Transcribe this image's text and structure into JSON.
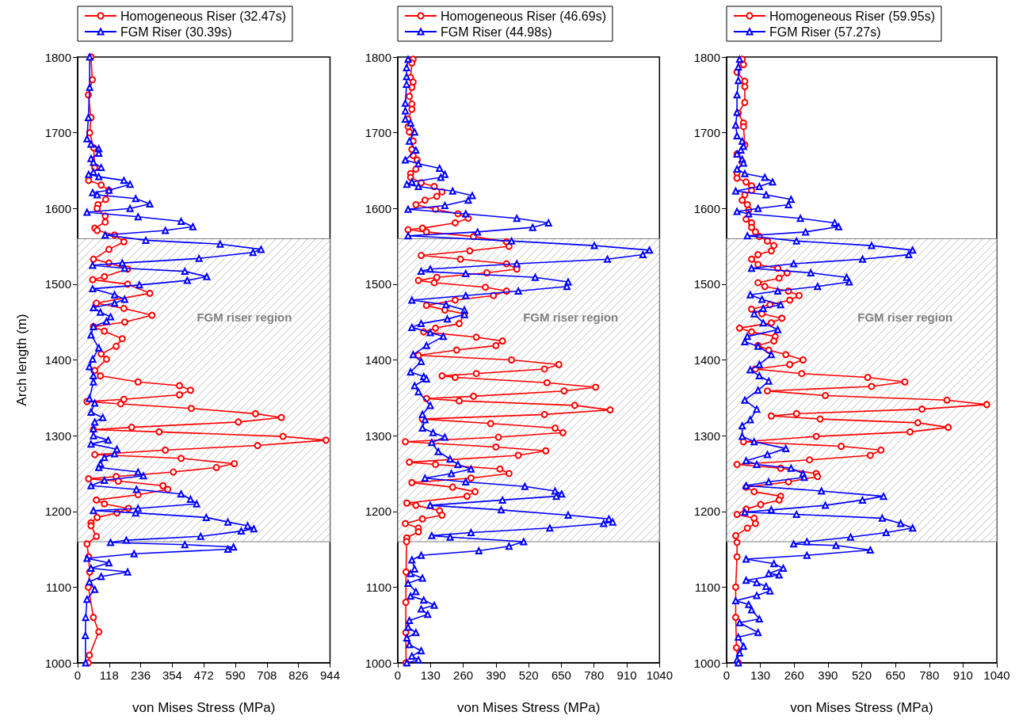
{
  "chart_data": [
    {
      "type": "line",
      "xlabel": "von Mises Stress (MPa)",
      "ylabel": "Arch length (m)",
      "legend": "top",
      "xlim": [
        0,
        944
      ],
      "xticks": [
        0,
        118,
        236,
        354,
        472,
        590,
        708,
        826,
        944
      ],
      "ylim": [
        1000,
        1800
      ],
      "yticks": [
        1000,
        1100,
        1200,
        1300,
        1400,
        1500,
        1600,
        1700,
        1800
      ],
      "bands": [
        {
          "axis": "y",
          "from": 1160,
          "to": 1560,
          "label": "FGM riser region",
          "color": "#808080"
        }
      ],
      "series": [
        {
          "name": "Homogeneous Riser (32.47s)",
          "color": "#ff0000",
          "marker": "circle",
          "x": [
            50,
            55,
            40,
            50,
            45,
            60,
            64,
            41,
            88,
            117,
            105,
            76,
            73,
            103,
            103,
            64,
            73,
            138,
            173,
            117,
            59,
            117,
            187,
            100,
            56,
            187,
            270,
            70,
            173,
            278,
            176,
            59,
            100,
            167,
            144,
            88,
            108,
            64,
            85,
            226,
            381,
            422,
            381,
            173,
            35,
            161,
            425,
            665,
            762,
            601,
            202,
            59,
            305,
            768,
            929,
            673,
            328,
            64,
            387,
            586,
            519,
            358,
            144,
            41,
            152,
            319,
            337,
            226,
            70,
            100,
            190,
            147,
            73,
            50,
            50,
            70,
            35,
            41,
            45,
            40,
            59,
            79,
            44,
            40
          ],
          "values": [
            1800,
            1770,
            1750,
            1720,
            1700,
            1680,
            1654,
            1637,
            1631,
            1624,
            1612,
            1605,
            1600,
            1590,
            1582,
            1574,
            1571,
            1565,
            1556,
            1546,
            1533,
            1528,
            1520,
            1510,
            1506,
            1500,
            1488,
            1475,
            1468,
            1459,
            1450,
            1444,
            1438,
            1428,
            1418,
            1408,
            1401,
            1386,
            1379,
            1371,
            1366,
            1360,
            1354,
            1348,
            1345,
            1342,
            1336,
            1329,
            1324,
            1318,
            1311,
            1308,
            1305,
            1299,
            1294,
            1287,
            1281,
            1275,
            1270,
            1263,
            1258,
            1252,
            1246,
            1243,
            1240,
            1234,
            1229,
            1222,
            1215,
            1210,
            1204,
            1198,
            1192,
            1185,
            1181,
            1167,
            1157,
            1140,
            1120,
            1100,
            1060,
            1041,
            1010,
            1000
          ]
        },
        {
          "name": "FGM Riser (30.39s)",
          "color": "#0000ff",
          "marker": "triangle",
          "x": [
            45,
            45,
            40,
            35,
            50,
            79,
            79,
            50,
            59,
            88,
            59,
            41,
            79,
            173,
            196,
            117,
            56,
            73,
            217,
            270,
            196,
            35,
            226,
            387,
            431,
            328,
            103,
            255,
            533,
            686,
            656,
            454,
            167,
            56,
            176,
            401,
            483,
            410,
            231,
            56,
            138,
            176,
            138,
            59,
            85,
            123,
            108,
            59,
            50,
            79,
            56,
            44,
            59,
            59,
            44,
            64,
            50,
            94,
            64,
            59,
            59,
            114,
            50,
            147,
            138,
            100,
            85,
            79,
            226,
            246,
            100,
            50,
            220,
            387,
            422,
            445,
            226,
            59,
            217,
            481,
            562,
            636,
            659,
            612,
            460,
            182,
            123,
            401,
            583,
            562,
            211,
            35,
            117,
            50,
            187,
            88,
            44,
            64,
            35,
            30,
            29,
            30
          ],
          "values": [
            1800,
            1760,
            1720,
            1692,
            1685,
            1679,
            1673,
            1666,
            1661,
            1654,
            1648,
            1645,
            1642,
            1637,
            1632,
            1624,
            1621,
            1618,
            1613,
            1606,
            1600,
            1595,
            1589,
            1583,
            1576,
            1571,
            1565,
            1558,
            1553,
            1546,
            1542,
            1534,
            1528,
            1525,
            1521,
            1517,
            1510,
            1505,
            1499,
            1494,
            1486,
            1480,
            1475,
            1469,
            1463,
            1457,
            1451,
            1444,
            1433,
            1416,
            1401,
            1391,
            1379,
            1371,
            1349,
            1343,
            1331,
            1324,
            1318,
            1309,
            1300,
            1294,
            1289,
            1282,
            1276,
            1271,
            1263,
            1258,
            1252,
            1247,
            1241,
            1234,
            1229,
            1223,
            1216,
            1210,
            1204,
            1201,
            1198,
            1192,
            1186,
            1181,
            1177,
            1174,
            1167,
            1162,
            1159,
            1156,
            1153,
            1150,
            1144,
            1138,
            1132,
            1125,
            1120,
            1114,
            1107,
            1097,
            1084,
            1060,
            1036,
            1000
          ]
        }
      ]
    },
    {
      "type": "line",
      "xlabel": "von Mises Stress (MPa)",
      "legend": "top",
      "xlim": [
        0,
        1040
      ],
      "xticks": [
        0,
        130,
        260,
        390,
        520,
        650,
        780,
        910,
        1040
      ],
      "ylim": [
        1000,
        1800
      ],
      "yticks": [
        1000,
        1100,
        1200,
        1300,
        1400,
        1500,
        1600,
        1700,
        1800
      ],
      "bands": [
        {
          "axis": "y",
          "from": 1160,
          "to": 1560,
          "label": "FGM riser region",
          "color": "#808080"
        }
      ],
      "series": [
        {
          "name": "Homogeneous Riser (46.69s)",
          "color": "#ff0000",
          "marker": "circle",
          "x": [
            61,
            56,
            51,
            61,
            56,
            46,
            56,
            56,
            41,
            41,
            46,
            61,
            56,
            61,
            77,
            72,
            51,
            51,
            93,
            145,
            176,
            155,
            108,
            72,
            150,
            239,
            280,
            228,
            98,
            41,
            114,
            301,
            432,
            442,
            286,
            93,
            249,
            432,
            473,
            354,
            155,
            82,
            145,
            348,
            432,
            380,
            228,
            114,
            187,
            265,
            244,
            150,
            103,
            312,
            416,
            390,
            234,
            82,
            452,
            640,
            583,
            312,
            176,
            228,
            593,
            786,
            661,
            301,
            114,
            244,
            703,
            844,
            583,
            98,
            369,
            625,
            656,
            400,
            30,
            390,
            588,
            479,
            46,
            150,
            406,
            442,
            291,
            56,
            218,
            307,
            275,
            36,
            72,
            166,
            176,
            98,
            30,
            82,
            82,
            36,
            35,
            33,
            32,
            32,
            33
          ],
          "values": [
            1797,
            1792,
            1773,
            1767,
            1760,
            1748,
            1738,
            1731,
            1718,
            1708,
            1701,
            1689,
            1678,
            1670,
            1664,
            1652,
            1646,
            1641,
            1634,
            1629,
            1622,
            1616,
            1611,
            1605,
            1599,
            1593,
            1587,
            1581,
            1574,
            1572,
            1569,
            1563,
            1556,
            1550,
            1544,
            1538,
            1533,
            1527,
            1520,
            1515,
            1509,
            1505,
            1502,
            1496,
            1491,
            1485,
            1479,
            1472,
            1466,
            1461,
            1448,
            1442,
            1437,
            1430,
            1425,
            1419,
            1413,
            1406,
            1400,
            1394,
            1388,
            1382,
            1379,
            1377,
            1370,
            1364,
            1359,
            1352,
            1349,
            1346,
            1340,
            1334,
            1328,
            1322,
            1316,
            1310,
            1304,
            1298,
            1292,
            1285,
            1280,
            1274,
            1265,
            1262,
            1256,
            1250,
            1244,
            1238,
            1232,
            1226,
            1220,
            1211,
            1208,
            1201,
            1195,
            1190,
            1184,
            1178,
            1173,
            1165,
            1160,
            1120,
            1080,
            1040,
            1000
          ]
        },
        {
          "name": "FGM Riser (44.98s)",
          "color": "#0000ff",
          "marker": "triangle",
          "x": [
            41,
            35,
            35,
            35,
            30,
            30,
            30,
            51,
            67,
            46,
            72,
            30,
            82,
            166,
            187,
            171,
            56,
            36,
            82,
            218,
            296,
            280,
            187,
            41,
            270,
            473,
            599,
            536,
            317,
            41,
            452,
            781,
            1000,
            974,
            833,
            473,
            129,
            93,
            270,
            546,
            677,
            672,
            479,
            270,
            56,
            192,
            265,
            265,
            197,
            93,
            56,
            129,
            181,
            114,
            61,
            93,
            51,
            103,
            114,
            67,
            82,
            129,
            98,
            108,
            98,
            140,
            187,
            135,
            161,
            208,
            239,
            291,
            213,
            108,
            270,
            505,
            625,
            651,
            630,
            416,
            129,
            411,
            677,
            839,
            854,
            818,
            604,
            291,
            135,
            208,
            500,
            442,
            322,
            93,
            56,
            67,
            51,
            98,
            41,
            72,
            51,
            103,
            145,
            93,
            119,
            46,
            41,
            72,
            36,
            46,
            93,
            56,
            82,
            36
          ],
          "values": [
            1797,
            1786,
            1774,
            1764,
            1739,
            1729,
            1718,
            1713,
            1701,
            1689,
            1677,
            1664,
            1659,
            1653,
            1645,
            1641,
            1635,
            1632,
            1629,
            1623,
            1617,
            1611,
            1604,
            1599,
            1593,
            1587,
            1581,
            1575,
            1569,
            1564,
            1557,
            1551,
            1545,
            1539,
            1533,
            1527,
            1520,
            1517,
            1514,
            1509,
            1503,
            1497,
            1491,
            1485,
            1479,
            1473,
            1466,
            1460,
            1454,
            1448,
            1443,
            1436,
            1431,
            1419,
            1407,
            1398,
            1384,
            1378,
            1375,
            1366,
            1358,
            1340,
            1328,
            1321,
            1310,
            1304,
            1298,
            1291,
            1279,
            1269,
            1262,
            1256,
            1250,
            1244,
            1239,
            1233,
            1227,
            1223,
            1220,
            1215,
            1208,
            1202,
            1195,
            1190,
            1186,
            1184,
            1178,
            1172,
            1168,
            1166,
            1160,
            1154,
            1148,
            1142,
            1136,
            1124,
            1118,
            1112,
            1105,
            1094,
            1088,
            1083,
            1076,
            1071,
            1064,
            1056,
            1047,
            1040,
            1033,
            1024,
            1016,
            1009,
            1004,
            1000
          ]
        }
      ]
    },
    {
      "type": "line",
      "xlabel": "von Mises Stress (MPa)",
      "legend": "top",
      "xlim": [
        0,
        1040
      ],
      "xticks": [
        0,
        130,
        260,
        390,
        520,
        650,
        780,
        910,
        1040
      ],
      "ylim": [
        1000,
        1800
      ],
      "yticks": [
        1000,
        1100,
        1200,
        1300,
        1400,
        1500,
        1600,
        1700,
        1800
      ],
      "bands": [
        {
          "axis": "y",
          "from": 1160,
          "to": 1560,
          "label": "FGM riser region",
          "color": "#808080"
        }
      ],
      "series": [
        {
          "name": "Homogeneous Riser (59.95s)",
          "color": "#ff0000",
          "marker": "circle",
          "x": [
            60,
            65,
            40,
            70,
            70,
            70,
            45,
            65,
            65,
            70,
            40,
            60,
            40,
            40,
            75,
            96,
            96,
            70,
            60,
            80,
            85,
            75,
            96,
            96,
            111,
            126,
            157,
            182,
            172,
            121,
            96,
            121,
            197,
            233,
            202,
            121,
            147,
            238,
            279,
            243,
            167,
            96,
            136,
            213,
            172,
            50,
            96,
            187,
            182,
            121,
            162,
            228,
            294,
            243,
            111,
            289,
            543,
            686,
            558,
            157,
            380,
            848,
            1001,
            752,
            269,
            172,
            360,
            736,
            853,
            706,
            345,
            65,
            441,
            594,
            553,
            319,
            40,
            208,
            345,
            350,
            238,
            75,
            106,
            208,
            202,
            131,
            75,
            40,
            106,
            111,
            80,
            35,
            40,
            40,
            35,
            35,
            38,
            45
          ],
          "values": [
            1797,
            1790,
            1780,
            1768,
            1761,
            1740,
            1726,
            1713,
            1708,
            1684,
            1672,
            1661,
            1647,
            1640,
            1635,
            1630,
            1624,
            1618,
            1611,
            1605,
            1598,
            1586,
            1581,
            1575,
            1569,
            1563,
            1557,
            1551,
            1544,
            1539,
            1533,
            1526,
            1521,
            1515,
            1508,
            1502,
            1497,
            1491,
            1485,
            1479,
            1473,
            1467,
            1461,
            1455,
            1449,
            1442,
            1437,
            1431,
            1425,
            1419,
            1413,
            1407,
            1400,
            1394,
            1388,
            1382,
            1377,
            1371,
            1365,
            1359,
            1353,
            1347,
            1341,
            1335,
            1329,
            1326,
            1322,
            1317,
            1311,
            1305,
            1299,
            1292,
            1286,
            1281,
            1274,
            1268,
            1262,
            1257,
            1250,
            1246,
            1239,
            1232,
            1226,
            1220,
            1215,
            1209,
            1203,
            1196,
            1191,
            1184,
            1178,
            1168,
            1159,
            1140,
            1100,
            1060,
            1020,
            1000
          ]
        },
        {
          "name": "FGM Riser (57.27s)",
          "color": "#0000ff",
          "marker": "triangle",
          "x": [
            50,
            45,
            45,
            40,
            40,
            35,
            40,
            60,
            65,
            55,
            40,
            60,
            65,
            40,
            70,
            147,
            177,
            126,
            35,
            152,
            248,
            238,
            121,
            40,
            85,
            284,
            416,
            431,
            304,
            80,
            269,
            558,
            716,
            701,
            523,
            258,
            96,
            324,
            462,
            472,
            350,
            197,
            91,
            136,
            208,
            141,
            106,
            141,
            197,
            80,
            70,
            121,
            172,
            126,
            91,
            126,
            162,
            121,
            70,
            116,
            91,
            60,
            60,
            106,
            228,
            157,
            75,
            116,
            248,
            294,
            299,
            162,
            75,
            365,
            604,
            523,
            380,
            172,
            70,
            269,
            599,
            670,
            716,
            614,
            477,
            309,
            258,
            421,
            553,
            309,
            75,
            182,
            218,
            162,
            202,
            75,
            116,
            152,
            167,
            116,
            35,
            85,
            96,
            126,
            50,
            121,
            45,
            65,
            50,
            40,
            45
          ],
          "values": [
            1797,
            1787,
            1769,
            1750,
            1727,
            1710,
            1696,
            1689,
            1682,
            1677,
            1672,
            1665,
            1660,
            1652,
            1646,
            1641,
            1635,
            1629,
            1623,
            1618,
            1612,
            1605,
            1600,
            1596,
            1593,
            1587,
            1581,
            1576,
            1569,
            1564,
            1557,
            1551,
            1545,
            1539,
            1533,
            1527,
            1521,
            1515,
            1509,
            1503,
            1497,
            1491,
            1486,
            1480,
            1473,
            1468,
            1461,
            1449,
            1440,
            1431,
            1424,
            1418,
            1407,
            1394,
            1387,
            1379,
            1372,
            1360,
            1347,
            1335,
            1321,
            1313,
            1299,
            1292,
            1283,
            1275,
            1267,
            1262,
            1257,
            1250,
            1245,
            1239,
            1234,
            1227,
            1220,
            1215,
            1208,
            1202,
            1199,
            1196,
            1191,
            1184,
            1178,
            1172,
            1166,
            1160,
            1157,
            1155,
            1149,
            1142,
            1137,
            1131,
            1125,
            1118,
            1116,
            1109,
            1106,
            1101,
            1095,
            1089,
            1082,
            1077,
            1070,
            1058,
            1053,
            1040,
            1034,
            1022,
            1013,
            1004,
            1000
          ]
        }
      ]
    }
  ]
}
